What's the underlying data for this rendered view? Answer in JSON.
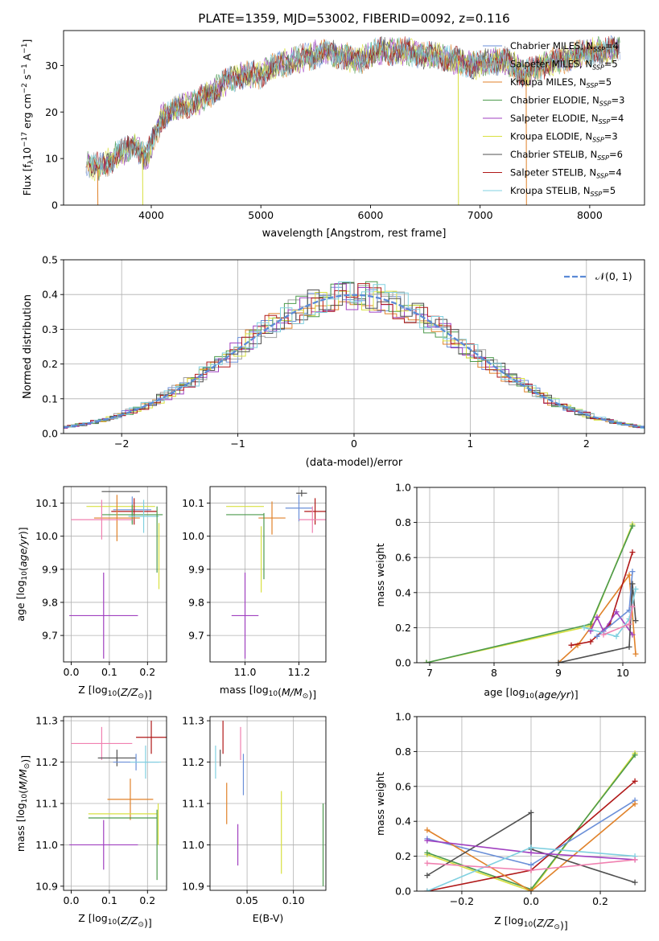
{
  "figure_title": "PLATE=1359, MJD=53002, FIBERID=0092, z=0.116",
  "colors": {
    "chabrier_miles": "#6a8fd8",
    "salpeter_miles": "#a0a0a0",
    "kroupa_miles": "#e0822a",
    "chabrier_elodie": "#4c9a4c",
    "salpeter_elodie": "#a040c0",
    "kroupa_elodie": "#d8e040",
    "chabrier_stelib": "#505050",
    "salpeter_stelib": "#b01818",
    "kroupa_stelib": "#80d0e0",
    "pink": "#f080b0",
    "gaussian": "#5b8ad6"
  },
  "chart_data": [
    {
      "type": "line",
      "id": "spectrum",
      "xlabel": "wavelength [Angstrom, rest frame]",
      "ylabel": "Flux [fλ10⁻¹⁷ erg cm⁻² s⁻¹ A⁻¹]",
      "xlim": [
        3200,
        8500
      ],
      "ylim": [
        0,
        37.5
      ],
      "xticks": [
        4000,
        5000,
        6000,
        7000,
        8000
      ],
      "yticks": [
        0,
        10,
        20,
        30
      ],
      "grid": false,
      "legend_position": "top-right",
      "continuum": {
        "x": [
          3400,
          3550,
          3700,
          3850,
          3950,
          4100,
          4250,
          4400,
          4550,
          4700,
          4850,
          5000,
          5150,
          5300,
          5450,
          5600,
          5750,
          5900,
          6050,
          6200,
          6350,
          6500,
          6650,
          6800,
          6950,
          7100,
          7250,
          7400,
          7550,
          7700,
          7850,
          8000,
          8150,
          8250
        ],
        "y": [
          9,
          8,
          11,
          13,
          10,
          19,
          21,
          22,
          24,
          27,
          28,
          28,
          30,
          31,
          32,
          33,
          32,
          31,
          33,
          33,
          33,
          32,
          32,
          31,
          30,
          31,
          31,
          28,
          30,
          31,
          32,
          33,
          33,
          34
        ]
      },
      "series": [
        {
          "name": "Chabrier MILES, N_SSP=4",
          "color_key": "chabrier_miles"
        },
        {
          "name": "Salpeter MILES, N_SSP=5",
          "color_key": "salpeter_miles"
        },
        {
          "name": "Kroupa MILES, N_SSP=5",
          "color_key": "kroupa_miles"
        },
        {
          "name": "Chabrier ELODIE, N_SSP=3",
          "color_key": "chabrier_elodie"
        },
        {
          "name": "Salpeter ELODIE, N_SSP=4",
          "color_key": "salpeter_elodie"
        },
        {
          "name": "Kroupa ELODIE, N_SSP=3",
          "color_key": "kroupa_elodie"
        },
        {
          "name": "Chabrier STELIB, N_SSP=6",
          "color_key": "chabrier_stelib"
        },
        {
          "name": "Salpeter STELIB, N_SSP=4",
          "color_key": "salpeter_stelib"
        },
        {
          "name": "Kroupa STELIB, N_SSP=5",
          "color_key": "kroupa_stelib"
        }
      ]
    },
    {
      "type": "step",
      "id": "residuals",
      "xlabel": "(data-model)/error",
      "ylabel": "Normed distribution",
      "xlim": [
        -2.5,
        2.5
      ],
      "ylim": [
        0,
        0.5
      ],
      "xticks": [
        -2,
        -1,
        0,
        1,
        2
      ],
      "yticks": [
        0.0,
        0.1,
        0.2,
        0.3,
        0.4,
        0.5
      ],
      "grid": true,
      "legend_position": "top-right",
      "gaussian_label": "𝒩(0, 1)"
    },
    {
      "type": "scatter-errorbar",
      "id": "age_vs_Z",
      "xlabel": "Z [log10(Z/Z⊙)]",
      "ylabel": "age  [log10(age/yr)]",
      "xlim": [
        -0.02,
        0.25
      ],
      "ylim": [
        9.62,
        10.15
      ],
      "xticks": [
        0.0,
        0.1,
        0.2
      ],
      "yticks": [
        9.7,
        9.8,
        9.9,
        10.0,
        10.1
      ],
      "points": [
        {
          "c": "chabrier_stelib",
          "x": 0.13,
          "xerr": 0.05,
          "y": 10.135,
          "yerr": 0.0
        },
        {
          "c": "kroupa_elodie",
          "x": 0.13,
          "xerr": 0.09,
          "y": 10.09,
          "yerr": 0.0
        },
        {
          "c": "chabrier_miles",
          "x": 0.16,
          "xerr": 0.05,
          "y": 10.08,
          "yerr": 0.04
        },
        {
          "c": "salpeter_stelib",
          "x": 0.165,
          "xerr": 0.06,
          "y": 10.075,
          "yerr": 0.04
        },
        {
          "c": "chabrier_elodie",
          "x": 0.16,
          "xerr": 0.08,
          "y": 10.065,
          "yerr": 0.03
        },
        {
          "c": "kroupa_stelib",
          "x": 0.19,
          "xerr": 0.04,
          "y": 10.06,
          "yerr": 0.05
        },
        {
          "c": "kroupa_miles",
          "x": 0.12,
          "xerr": 0.06,
          "y": 10.055,
          "yerr": 0.07
        },
        {
          "c": "pink",
          "x": 0.08,
          "xerr": 0.08,
          "y": 10.05,
          "yerr": 0.06
        },
        {
          "c": "chabrier_elodie",
          "x": 0.225,
          "xerr": 0.0,
          "y": 9.99,
          "yerr": 0.1
        },
        {
          "c": "kroupa_elodie",
          "x": 0.23,
          "xerr": 0.0,
          "y": 9.94,
          "yerr": 0.1
        },
        {
          "c": "salpeter_elodie",
          "x": 0.085,
          "xerr": 0.09,
          "y": 9.76,
          "yerr": 0.13
        }
      ]
    },
    {
      "type": "scatter-errorbar",
      "id": "age_vs_mass",
      "xlabel": "mass [log10(M/M⊙)]",
      "ylabel": "",
      "xlim": [
        10.87,
        11.3
      ],
      "ylim": [
        9.62,
        10.15
      ],
      "xticks": [
        11.0,
        11.2
      ],
      "yticks": [
        9.7,
        9.8,
        9.9,
        10.0,
        10.1
      ],
      "points": [
        {
          "c": "chabrier_stelib",
          "x": 11.21,
          "xerr": 0.02,
          "y": 10.13,
          "yerr": 0.01
        },
        {
          "c": "kroupa_elodie",
          "x": 11.0,
          "xerr": 0.07,
          "y": 10.09,
          "yerr": 0.0
        },
        {
          "c": "chabrier_miles",
          "x": 11.2,
          "xerr": 0.05,
          "y": 10.085,
          "yerr": 0.04
        },
        {
          "c": "salpeter_stelib",
          "x": 11.26,
          "xerr": 0.04,
          "y": 10.075,
          "yerr": 0.04
        },
        {
          "c": "chabrier_elodie",
          "x": 11.0,
          "xerr": 0.07,
          "y": 10.065,
          "yerr": 0.0
        },
        {
          "c": "kroupa_miles",
          "x": 11.1,
          "xerr": 0.05,
          "y": 10.055,
          "yerr": 0.05
        },
        {
          "c": "pink",
          "x": 11.25,
          "xerr": 0.05,
          "y": 10.05,
          "yerr": 0.04
        },
        {
          "c": "chabrier_elodie",
          "x": 11.07,
          "xerr": 0.0,
          "y": 9.97,
          "yerr": 0.1
        },
        {
          "c": "kroupa_elodie",
          "x": 11.06,
          "xerr": 0.0,
          "y": 9.93,
          "yerr": 0.1
        },
        {
          "c": "salpeter_elodie",
          "x": 11.0,
          "xerr": 0.05,
          "y": 9.76,
          "yerr": 0.13
        }
      ]
    },
    {
      "type": "line",
      "id": "weight_vs_age",
      "xlabel": "age  [log10(age/yr)]",
      "ylabel": "mass weight",
      "xlim": [
        6.8,
        10.35
      ],
      "ylim": [
        0,
        1.0
      ],
      "xticks": [
        7,
        8,
        9,
        10
      ],
      "yticks": [
        0.0,
        0.2,
        0.4,
        0.6,
        0.8,
        1.0
      ],
      "grid": true,
      "series": [
        {
          "c": "kroupa_elodie",
          "x": [
            6.95,
            9.5,
            10.15
          ],
          "y": [
            0.0,
            0.21,
            0.79
          ]
        },
        {
          "c": "chabrier_elodie",
          "x": [
            6.95,
            9.5,
            10.15
          ],
          "y": [
            0.0,
            0.22,
            0.78
          ]
        },
        {
          "c": "kroupa_miles",
          "x": [
            9.0,
            9.3,
            10.1,
            10.2
          ],
          "y": [
            0.0,
            0.1,
            0.5,
            0.05
          ]
        },
        {
          "c": "salpeter_stelib",
          "x": [
            9.2,
            9.5,
            9.8,
            10.15
          ],
          "y": [
            0.1,
            0.12,
            0.22,
            0.63
          ]
        },
        {
          "c": "salpeter_elodie",
          "x": [
            9.5,
            9.6,
            9.7,
            9.9,
            10.15
          ],
          "y": [
            0.18,
            0.26,
            0.18,
            0.29,
            0.16
          ]
        },
        {
          "c": "chabrier_miles",
          "x": [
            9.6,
            10.1,
            10.15
          ],
          "y": [
            0.15,
            0.3,
            0.52
          ]
        },
        {
          "c": "chabrier_stelib",
          "x": [
            9.0,
            10.1,
            10.15,
            10.2
          ],
          "y": [
            0.0,
            0.09,
            0.45,
            0.24
          ]
        },
        {
          "c": "kroupa_stelib",
          "x": [
            9.4,
            9.9,
            10.1,
            10.2
          ],
          "y": [
            0.2,
            0.15,
            0.25,
            0.42
          ]
        },
        {
          "c": "pink",
          "x": [
            9.7,
            10.1,
            10.15
          ],
          "y": [
            0.16,
            0.22,
            0.32
          ]
        }
      ]
    },
    {
      "type": "scatter-errorbar",
      "id": "mass_vs_Z",
      "xlabel": "Z [log10(Z/Z⊙)]",
      "ylabel": "mass [log10(M/M⊙)]",
      "xlim": [
        -0.02,
        0.25
      ],
      "ylim": [
        10.89,
        11.31
      ],
      "xticks": [
        0.0,
        0.1,
        0.2
      ],
      "yticks": [
        10.9,
        11.0,
        11.1,
        11.2,
        11.3
      ],
      "points": [
        {
          "c": "salpeter_stelib",
          "x": 0.21,
          "xerr": 0.04,
          "y": 11.26,
          "yerr": 0.04
        },
        {
          "c": "pink",
          "x": 0.08,
          "xerr": 0.08,
          "y": 11.245,
          "yerr": 0.04
        },
        {
          "c": "chabrier_stelib",
          "x": 0.12,
          "xerr": 0.05,
          "y": 11.21,
          "yerr": 0.02
        },
        {
          "c": "chabrier_miles",
          "x": 0.17,
          "xerr": 0.06,
          "y": 11.2,
          "yerr": 0.02
        },
        {
          "c": "kroupa_stelib",
          "x": 0.195,
          "xerr": 0.04,
          "y": 11.2,
          "yerr": 0.04
        },
        {
          "c": "kroupa_miles",
          "x": 0.155,
          "xerr": 0.06,
          "y": 11.11,
          "yerr": 0.05
        },
        {
          "c": "kroupa_elodie",
          "x": 0.135,
          "xerr": 0.09,
          "y": 11.075,
          "yerr": 0.0
        },
        {
          "c": "chabrier_elodie",
          "x": 0.135,
          "xerr": 0.09,
          "y": 11.065,
          "yerr": 0.0
        },
        {
          "c": "salpeter_elodie",
          "x": 0.085,
          "xerr": 0.09,
          "y": 11.0,
          "yerr": 0.06
        },
        {
          "c": "chabrier_elodie",
          "x": 0.225,
          "xerr": 0.0,
          "y": 11.0,
          "yerr": 0.085
        },
        {
          "c": "kroupa_elodie",
          "x": 0.228,
          "xerr": 0.0,
          "y": 11.05,
          "yerr": 0.05
        }
      ]
    },
    {
      "type": "scatter-errorbar",
      "id": "mass_vs_EBV",
      "xlabel": "E(B-V)",
      "ylabel": "",
      "xlim": [
        0.01,
        0.135
      ],
      "ylim": [
        10.89,
        11.31
      ],
      "xticks": [
        0.05,
        0.1
      ],
      "yticks": [
        10.9,
        11.0,
        11.1,
        11.2,
        11.3
      ],
      "points": [
        {
          "c": "salpeter_stelib",
          "x": 0.024,
          "xerr": 0.0,
          "y": 11.26,
          "yerr": 0.04
        },
        {
          "c": "pink",
          "x": 0.043,
          "xerr": 0.0,
          "y": 11.245,
          "yerr": 0.04
        },
        {
          "c": "chabrier_stelib",
          "x": 0.021,
          "xerr": 0.0,
          "y": 11.21,
          "yerr": 0.02
        },
        {
          "c": "kroupa_stelib",
          "x": 0.016,
          "xerr": 0.0,
          "y": 11.2,
          "yerr": 0.04
        },
        {
          "c": "chabrier_miles",
          "x": 0.046,
          "xerr": 0.0,
          "y": 11.17,
          "yerr": 0.05
        },
        {
          "c": "kroupa_miles",
          "x": 0.028,
          "xerr": 0.0,
          "y": 11.1,
          "yerr": 0.05
        },
        {
          "c": "kroupa_elodie",
          "x": 0.087,
          "xerr": 0.0,
          "y": 11.03,
          "yerr": 0.1
        },
        {
          "c": "salpeter_elodie",
          "x": 0.04,
          "xerr": 0.0,
          "y": 11.0,
          "yerr": 0.05
        },
        {
          "c": "chabrier_elodie",
          "x": 0.132,
          "xerr": 0.0,
          "y": 11.0,
          "yerr": 0.1
        }
      ]
    },
    {
      "type": "line",
      "id": "weight_vs_Z",
      "xlabel": "Z [log10(Z/Z⊙)]",
      "ylabel": "mass weight",
      "xlim": [
        -0.33,
        0.33
      ],
      "ylim": [
        0,
        1.0
      ],
      "xticks": [
        -0.2,
        0.0,
        0.2
      ],
      "yticks": [
        0.0,
        0.2,
        0.4,
        0.6,
        0.8,
        1.0
      ],
      "grid": true,
      "series": [
        {
          "c": "kroupa_elodie",
          "x": [
            -0.3,
            0.0,
            0.3
          ],
          "y": [
            0.21,
            0.0,
            0.79
          ]
        },
        {
          "c": "chabrier_elodie",
          "x": [
            -0.3,
            0.0,
            0.3
          ],
          "y": [
            0.22,
            0.01,
            0.78
          ]
        },
        {
          "c": "salpeter_stelib",
          "x": [
            -0.3,
            0.0,
            0.3
          ],
          "y": [
            0.0,
            0.12,
            0.63
          ]
        },
        {
          "c": "chabrier_miles",
          "x": [
            -0.3,
            0.0,
            0.3
          ],
          "y": [
            0.3,
            0.15,
            0.52
          ]
        },
        {
          "c": "kroupa_miles",
          "x": [
            -0.3,
            0.0,
            0.3
          ],
          "y": [
            0.35,
            0.0,
            0.5
          ]
        },
        {
          "c": "chabrier_stelib",
          "x": [
            -0.3,
            0.0,
            0.0,
            0.3
          ],
          "y": [
            0.09,
            0.45,
            0.24,
            0.05
          ]
        },
        {
          "c": "salpeter_elodie",
          "x": [
            -0.3,
            0.0,
            0.3
          ],
          "y": [
            0.29,
            0.22,
            0.18
          ]
        },
        {
          "c": "kroupa_stelib",
          "x": [
            -0.3,
            0.0,
            0.3
          ],
          "y": [
            0.0,
            0.25,
            0.2
          ]
        },
        {
          "c": "pink",
          "x": [
            -0.3,
            0.0,
            0.3
          ],
          "y": [
            0.16,
            0.12,
            0.18
          ]
        }
      ]
    }
  ]
}
